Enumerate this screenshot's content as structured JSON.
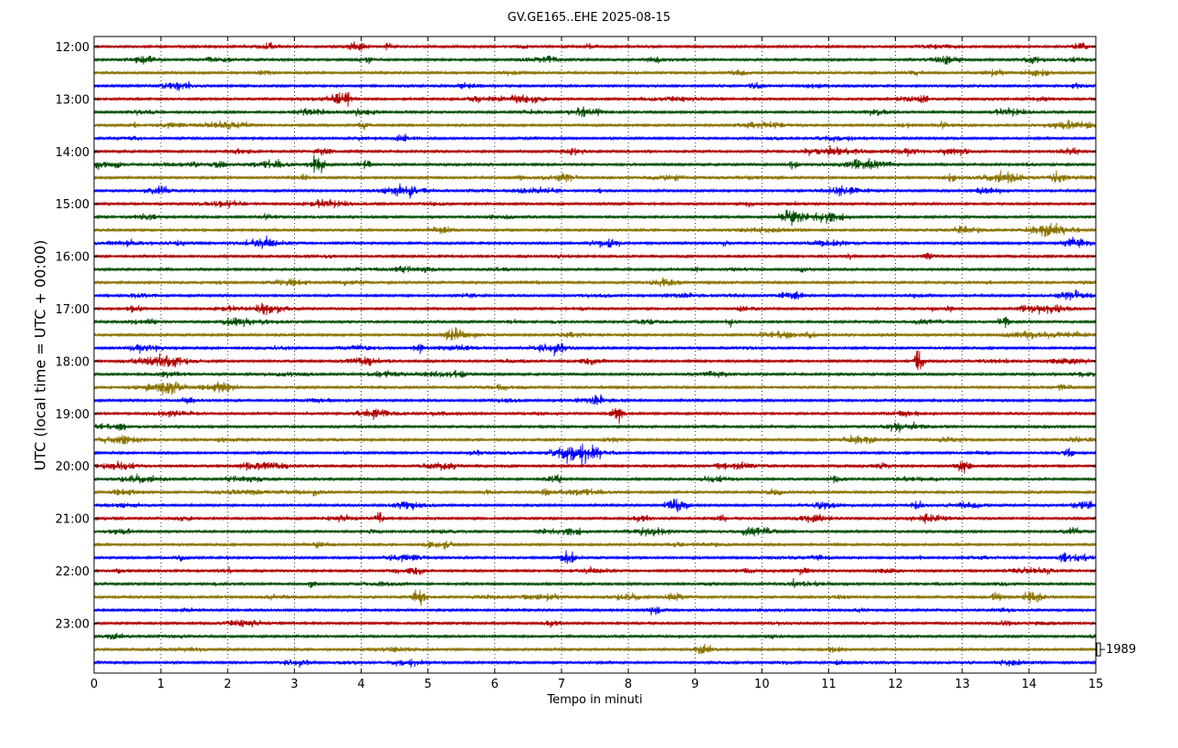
{
  "chart_data": {
    "type": "line",
    "title": "GV.GE165..EHE 2025-08-15",
    "xlabel": "Tempo in minuti",
    "ylabel": "UTC (local time = UTC + 00:00)",
    "xlim": [
      0,
      15
    ],
    "x_ticks": [
      0,
      1,
      2,
      3,
      4,
      5,
      6,
      7,
      8,
      9,
      10,
      11,
      12,
      13,
      14,
      15
    ],
    "y_tick_labels": [
      "12:00",
      "13:00",
      "14:00",
      "15:00",
      "16:00",
      "17:00",
      "18:00",
      "19:00",
      "20:00",
      "21:00",
      "22:00",
      "23:00"
    ],
    "trace_interval_minutes": 15,
    "trace_start": "12:00",
    "trace_count": 48,
    "trace_colors": [
      "#b00000",
      "#004d00",
      "#8a7300",
      "#0000ff"
    ],
    "grid": "vertical-dotted",
    "scale_label": "1989"
  }
}
